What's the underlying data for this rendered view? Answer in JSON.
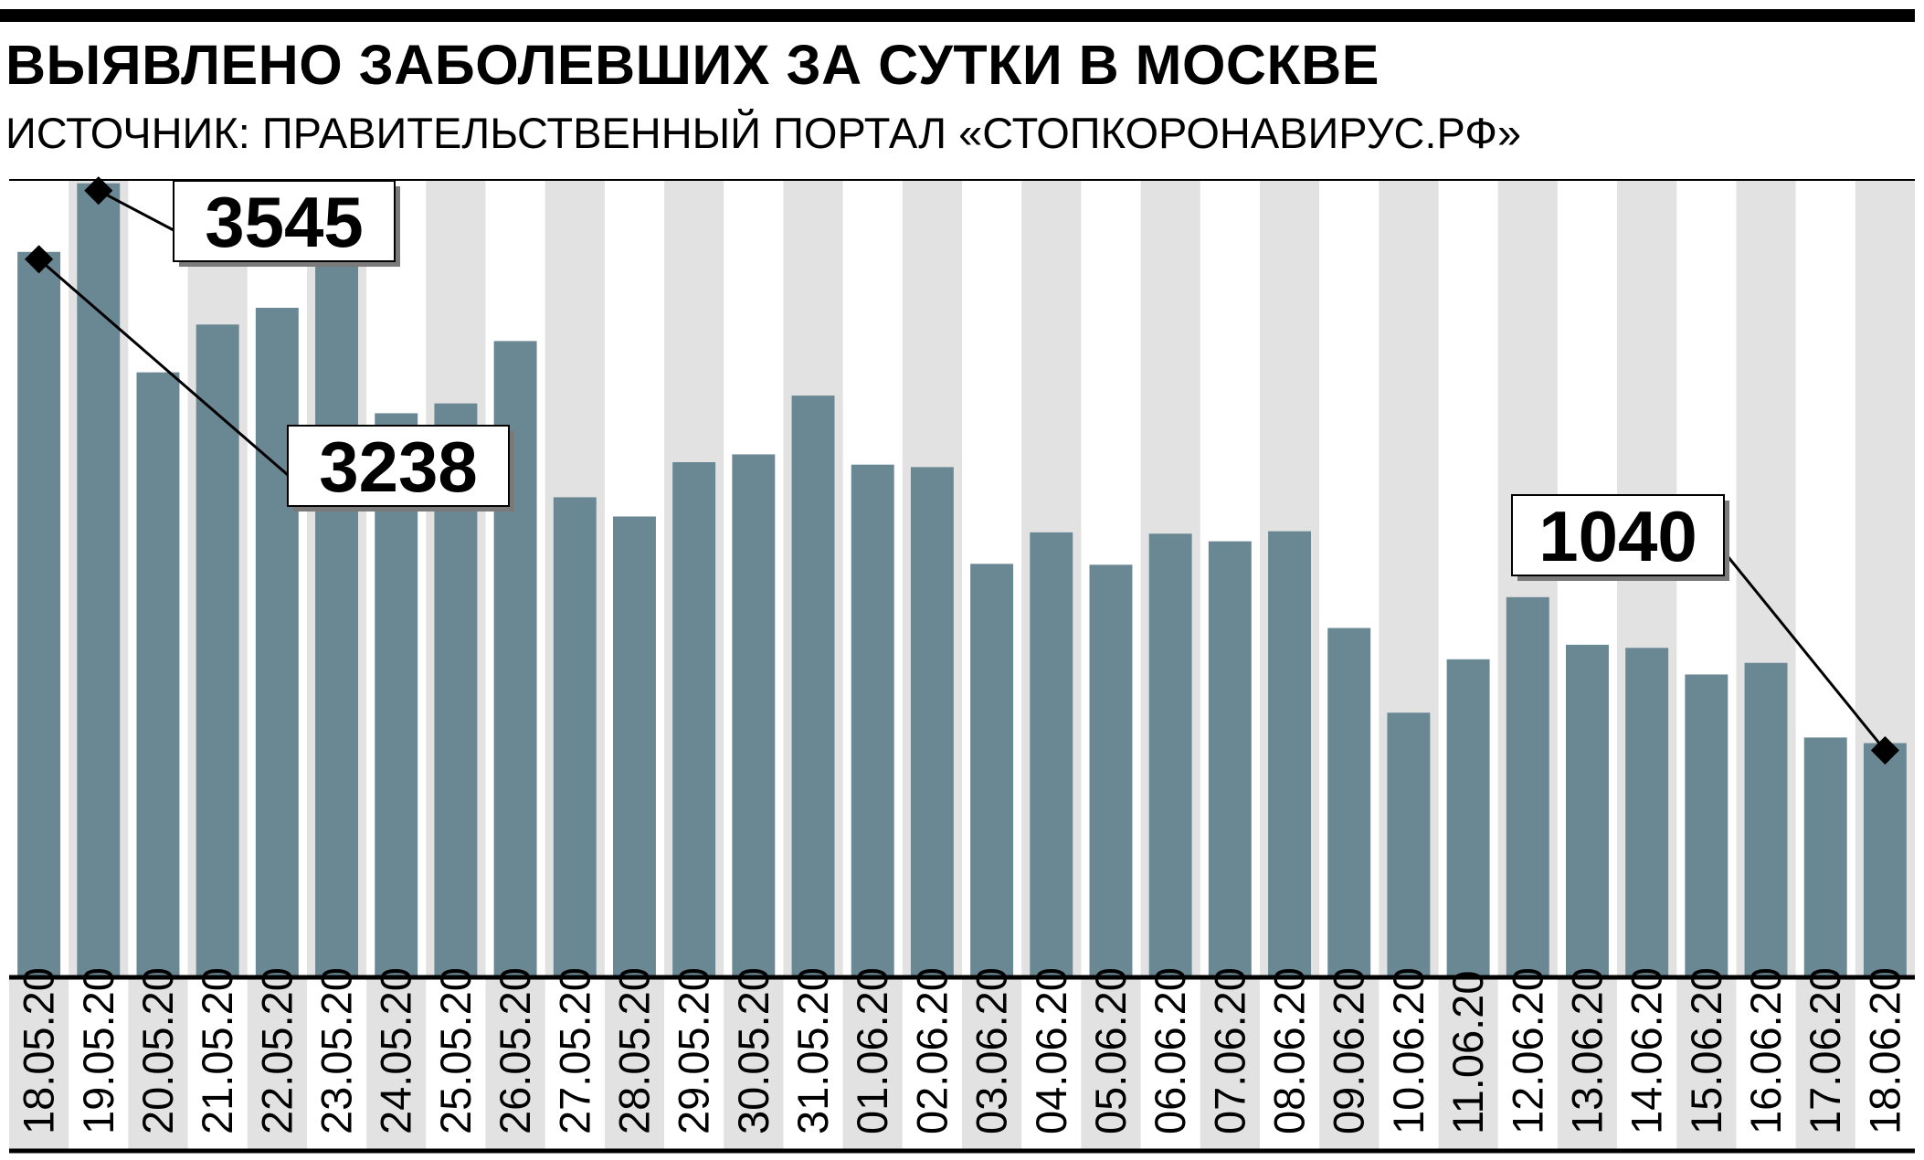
{
  "header": {
    "title_regular": "ВЫЯВЛЕНО ЗАБОЛЕВШИХ ЗА СУТКИ В ",
    "title_bold": "МОСКВЕ",
    "subtitle": "ИСТОЧНИК: ПРАВИТЕЛЬСТВЕННЫЙ ПОРТАЛ «СТОПКОРОНАВИРУС.РФ»"
  },
  "colors": {
    "bar": "#6a8893",
    "stripe": "#e2e2e2",
    "text": "#000000",
    "axis": "#000000"
  },
  "chart_data": {
    "type": "bar",
    "title": "ВЫЯВЛЕНО ЗАБОЛЕВШИХ ЗА СУТКИ В МОСКВЕ",
    "subtitle": "ИСТОЧНИК: ПРАВИТЕЛЬСТВЕННЫЙ ПОРТАЛ «СТОПКОРОНАВИРУС.РФ»",
    "xlabel": "",
    "ylabel": "",
    "grid": false,
    "ylim": [
      0,
      3560
    ],
    "categories": [
      "18.05.20",
      "19.05.20",
      "20.05.20",
      "21.05.20",
      "22.05.20",
      "23.05.20",
      "24.05.20",
      "25.05.20",
      "26.05.20",
      "27.05.20",
      "28.05.20",
      "29.05.20",
      "30.05.20",
      "31.05.20",
      "01.06.20",
      "02.06.20",
      "03.06.20",
      "04.06.20",
      "05.06.20",
      "06.06.20",
      "07.06.20",
      "08.06.20",
      "09.06.20",
      "10.06.20",
      "11.06.20",
      "12.06.20",
      "13.06.20",
      "14.06.20",
      "15.06.20",
      "16.06.20",
      "17.06.20",
      "18.06.20"
    ],
    "values": [
      3238,
      3545,
      2699,
      2913,
      2988,
      3300,
      2516,
      2560,
      2839,
      2140,
      2054,
      2297,
      2332,
      2595,
      2286,
      2275,
      1842,
      1983,
      1838,
      1977,
      1943,
      1988,
      1555,
      1176,
      1415,
      1693,
      1480,
      1466,
      1347,
      1399,
      1065,
      1040
    ],
    "annotations": [
      {
        "label": "3238",
        "index": 0,
        "value": 3238
      },
      {
        "label": "3545",
        "index": 1,
        "value": 3545
      },
      {
        "label": "1040",
        "index": 31,
        "value": 1040
      }
    ]
  }
}
